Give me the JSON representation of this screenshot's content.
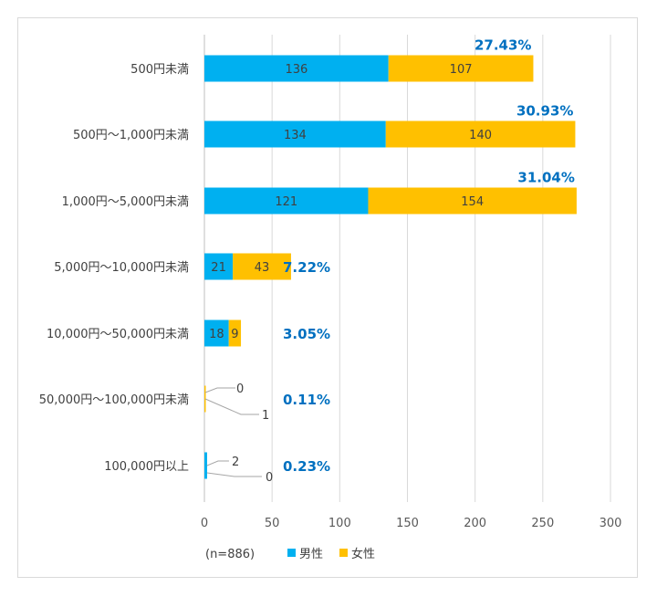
{
  "chart_data": {
    "type": "bar",
    "orientation": "horizontal",
    "stacked": true,
    "categories": [
      "500円未満",
      "500円〜1,000円未満",
      "1,000円〜5,000円未満",
      "5,000円〜10,000円未満",
      "10,000円〜50,000円未満",
      "50,000円〜100,000円未満",
      "100,000円以上"
    ],
    "series": [
      {
        "name": "男性",
        "color": "#00b0f0",
        "values": [
          136,
          134,
          121,
          21,
          18,
          0,
          2
        ]
      },
      {
        "name": "女性",
        "color": "#ffc000",
        "values": [
          107,
          140,
          154,
          43,
          9,
          1,
          0
        ]
      }
    ],
    "percent_labels": [
      "27.43%",
      "30.93%",
      "31.04%",
      "7.22%",
      "3.05%",
      "0.11%",
      "0.23%"
    ],
    "xlim": [
      0,
      300
    ],
    "xticks": [
      0,
      50,
      100,
      150,
      200,
      250,
      300
    ],
    "sample_note": "(n=886)",
    "grid": true,
    "legend_position": "bottom"
  }
}
